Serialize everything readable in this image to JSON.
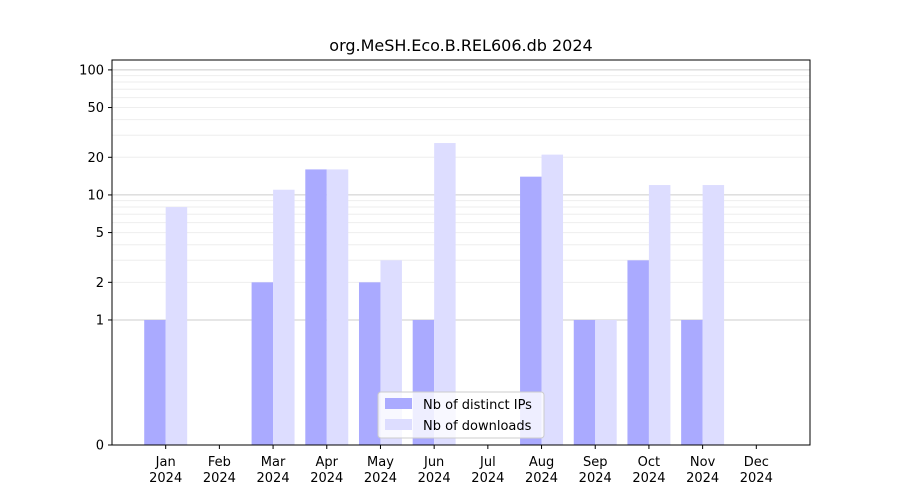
{
  "chart_data": {
    "type": "bar",
    "title": "org.MeSH.Eco.B.REL606.db 2024",
    "scale": "symlog",
    "categories": [
      {
        "month": "Jan",
        "year": "2024"
      },
      {
        "month": "Feb",
        "year": "2024"
      },
      {
        "month": "Mar",
        "year": "2024"
      },
      {
        "month": "Apr",
        "year": "2024"
      },
      {
        "month": "May",
        "year": "2024"
      },
      {
        "month": "Jun",
        "year": "2024"
      },
      {
        "month": "Jul",
        "year": "2024"
      },
      {
        "month": "Aug",
        "year": "2024"
      },
      {
        "month": "Sep",
        "year": "2024"
      },
      {
        "month": "Oct",
        "year": "2024"
      },
      {
        "month": "Nov",
        "year": "2024"
      },
      {
        "month": "Dec",
        "year": "2024"
      }
    ],
    "series": [
      {
        "name": "Nb of distinct IPs",
        "color": "#aaaaff",
        "values": [
          1,
          0,
          2,
          16,
          2,
          1,
          0,
          14,
          1,
          3,
          1,
          0
        ]
      },
      {
        "name": "Nb of downloads",
        "color": "#ddddff",
        "values": [
          8,
          0,
          11,
          16,
          3,
          26,
          0,
          21,
          1,
          12,
          12,
          0
        ]
      }
    ],
    "yticks": [
      0,
      1,
      2,
      5,
      10,
      20,
      50,
      100
    ],
    "ylim": [
      0,
      120
    ],
    "legend_position": "lower center",
    "grid": true
  }
}
